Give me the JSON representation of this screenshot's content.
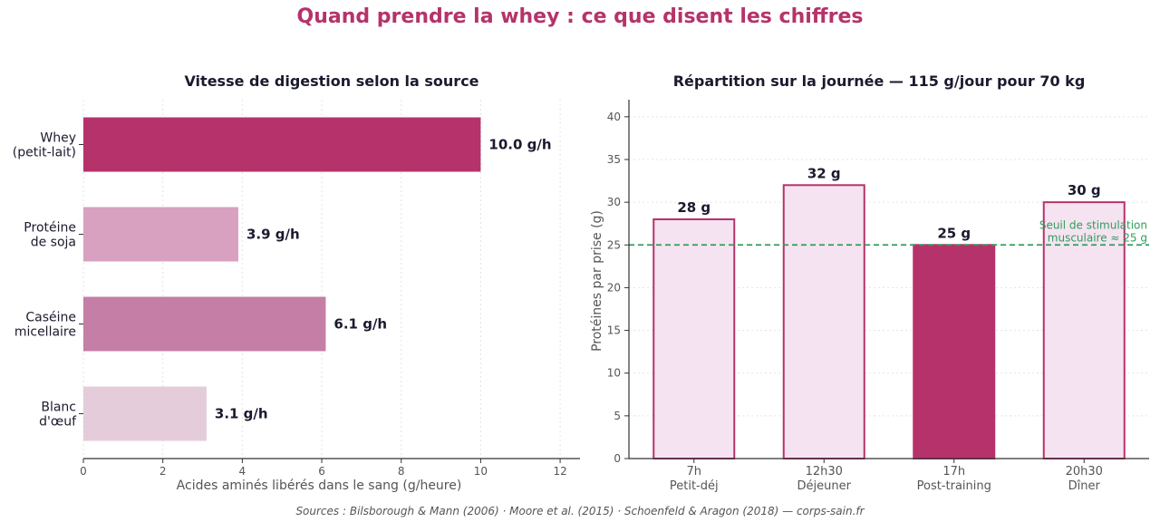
{
  "title": "Quand prendre la whey : ce que disent les chiffres",
  "sources": "Sources : Bilsborough & Mann (2006) · Moore et al. (2015) · Schoenfeld & Aragon (2018) — corps-sain.fr",
  "colors": {
    "accent": "#b5336a",
    "whey": "#b5336a",
    "soja": "#d7a1bf",
    "caseine": "#c57ea5",
    "oeuf": "#e4ccda",
    "bar_light_fill": "#f6e3f1",
    "threshold": "#2e9e5b",
    "text_dark": "#1a1a2e",
    "axis_text": "#555555"
  },
  "chart_data": [
    {
      "type": "bar",
      "orientation": "horizontal",
      "title": "Vitesse de digestion selon la source",
      "xlabel": "Acides aminés libérés dans le sang (g/heure)",
      "ylabel": "",
      "xlim": [
        0,
        12.5
      ],
      "xticks": [
        0,
        2,
        4,
        6,
        8,
        10,
        12
      ],
      "grid": "vertical dotted",
      "categories": [
        [
          "Whey",
          "(petit-lait)"
        ],
        [
          "Protéine",
          "de soja"
        ],
        [
          "Caséine",
          "micellaire"
        ],
        [
          "Blanc",
          "d'œuf"
        ]
      ],
      "values": [
        10.0,
        3.9,
        6.1,
        3.1
      ],
      "value_labels": [
        "10.0 g/h",
        "3.9 g/h",
        "6.1 g/h",
        "3.1 g/h"
      ],
      "bar_colors": [
        "#b5336a",
        "#d7a1bf",
        "#c57ea5",
        "#e4ccda"
      ]
    },
    {
      "type": "bar",
      "title": "Répartition sur la journée — 115 g/jour pour 70 kg",
      "xlabel": "",
      "ylabel": "Protéines par prise (g)",
      "ylim": [
        0,
        42
      ],
      "yticks": [
        0,
        5,
        10,
        15,
        20,
        25,
        30,
        35,
        40
      ],
      "grid": "horizontal dotted",
      "categories": [
        [
          "7h",
          "Petit-déj"
        ],
        [
          "12h30",
          "Déjeuner"
        ],
        [
          "17h",
          "Post-training"
        ],
        [
          "20h30",
          "Dîner"
        ]
      ],
      "values": [
        28,
        32,
        25,
        30
      ],
      "value_labels": [
        "28 g",
        "32 g",
        "25 g",
        "30 g"
      ],
      "highlight_index": 2,
      "threshold": {
        "value": 25,
        "label": [
          "Seuil de stimulation",
          "musculaire ≈ 25 g"
        ]
      }
    }
  ]
}
